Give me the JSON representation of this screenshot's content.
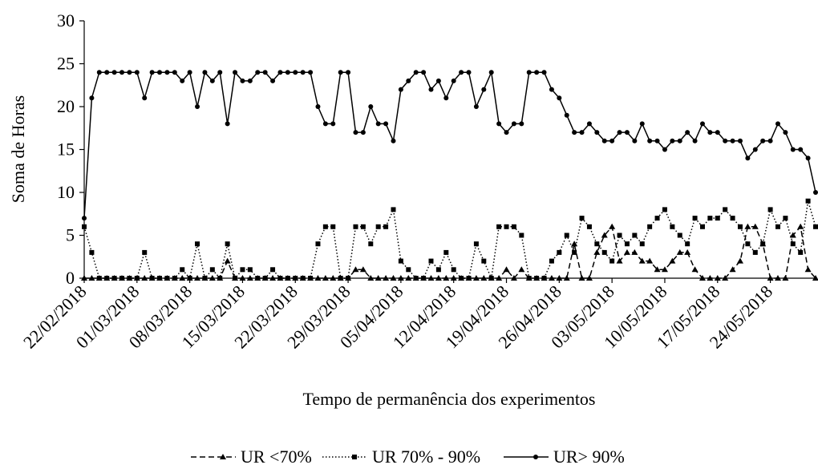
{
  "chart_data": {
    "type": "line",
    "y_label": "Soma de Horas",
    "x_label": "Tempo de permanência dos experimentos",
    "categories": [
      "22/02/2018",
      null,
      null,
      null,
      null,
      null,
      null,
      "01/03/2018",
      null,
      null,
      null,
      null,
      null,
      null,
      "08/03/2018",
      null,
      null,
      null,
      null,
      null,
      null,
      "15/03/2018",
      null,
      null,
      null,
      null,
      null,
      null,
      "22/03/2018",
      null,
      null,
      null,
      null,
      null,
      null,
      "29/03/2018",
      null,
      null,
      null,
      null,
      null,
      null,
      "05/04/2018",
      null,
      null,
      null,
      null,
      null,
      null,
      "12/04/2018",
      null,
      null,
      null,
      null,
      null,
      null,
      "19/04/2018",
      null,
      null,
      null,
      null,
      null,
      null,
      "26/04/2018",
      null,
      null,
      null,
      null,
      null,
      null,
      "03/05/2018",
      null,
      null,
      null,
      null,
      null,
      null,
      "10/05/2018",
      null,
      null,
      null,
      null,
      null,
      null,
      "17/05/2018",
      null,
      null,
      null,
      null,
      null,
      null,
      "24/05/2018",
      null,
      null,
      null,
      null,
      null,
      null
    ],
    "series": [
      {
        "name": "UR <70%",
        "color": "#000000",
        "dash": "dashed",
        "marker": "triangle",
        "values": [
          0,
          0,
          0,
          0,
          0,
          0,
          0,
          0,
          0,
          0,
          0,
          0,
          0,
          0,
          0,
          0,
          0,
          0,
          0,
          2,
          0,
          0,
          0,
          0,
          0,
          0,
          0,
          0,
          0,
          0,
          0,
          0,
          0,
          0,
          0,
          0,
          1,
          1,
          0,
          0,
          0,
          0,
          0,
          0,
          0,
          0,
          0,
          0,
          0,
          0,
          0,
          0,
          0,
          0,
          0,
          0,
          1,
          0,
          1,
          0,
          0,
          0,
          0,
          0,
          0,
          4,
          0,
          0,
          3,
          5,
          6,
          2,
          3,
          3,
          2,
          2,
          1,
          1,
          2,
          3,
          3,
          1,
          0,
          0,
          0,
          0,
          1,
          2,
          6,
          6,
          4,
          0,
          0,
          0,
          5,
          6,
          1,
          0
        ]
      },
      {
        "name": "UR 70% - 90%",
        "color": "#000000",
        "dash": "dotted",
        "marker": "square",
        "values": [
          6,
          3,
          0,
          0,
          0,
          0,
          0,
          0,
          3,
          0,
          0,
          0,
          0,
          1,
          0,
          4,
          0,
          1,
          0,
          4,
          0,
          1,
          1,
          0,
          0,
          1,
          0,
          0,
          0,
          0,
          0,
          4,
          6,
          6,
          0,
          0,
          6,
          6,
          4,
          6,
          6,
          8,
          2,
          1,
          0,
          0,
          2,
          1,
          3,
          1,
          0,
          0,
          4,
          2,
          0,
          6,
          6,
          6,
          5,
          0,
          0,
          0,
          2,
          3,
          5,
          3,
          7,
          6,
          4,
          3,
          2,
          5,
          4,
          5,
          4,
          6,
          7,
          8,
          6,
          5,
          4,
          7,
          6,
          7,
          7,
          8,
          7,
          6,
          4,
          3,
          4,
          8,
          6,
          7,
          4,
          3,
          9,
          6
        ]
      },
      {
        "name": "UR> 90%",
        "color": "#000000",
        "dash": "solid",
        "marker": "circle",
        "values": [
          7,
          21,
          24,
          24,
          24,
          24,
          24,
          24,
          21,
          24,
          24,
          24,
          24,
          23,
          24,
          20,
          24,
          23,
          24,
          18,
          24,
          23,
          23,
          24,
          24,
          23,
          24,
          24,
          24,
          24,
          24,
          20,
          18,
          18,
          24,
          24,
          17,
          17,
          20,
          18,
          18,
          16,
          22,
          23,
          24,
          24,
          22,
          23,
          21,
          23,
          24,
          24,
          20,
          22,
          24,
          18,
          17,
          18,
          18,
          24,
          24,
          24,
          22,
          21,
          19,
          17,
          17,
          18,
          17,
          16,
          16,
          17,
          17,
          16,
          18,
          16,
          16,
          15,
          16,
          16,
          17,
          16,
          18,
          17,
          17,
          16,
          16,
          16,
          14,
          15,
          16,
          16,
          18,
          17,
          15,
          15,
          14,
          10
        ]
      }
    ],
    "ylim": [
      0,
      30
    ],
    "yticks": [
      0,
      5,
      10,
      15,
      20,
      25,
      30
    ],
    "grid": false,
    "legend": "bottom"
  }
}
